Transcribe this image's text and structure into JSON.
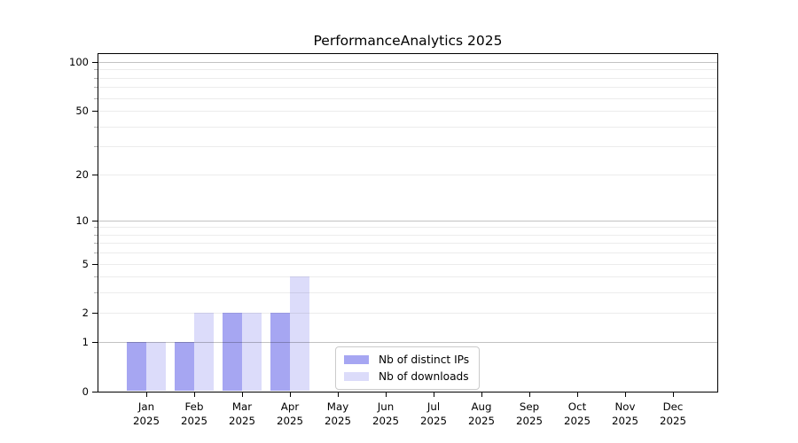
{
  "title": "PerformanceAnalytics 2025",
  "chart_data": {
    "type": "bar",
    "title": "PerformanceAnalytics 2025",
    "categories": [
      "Jan",
      "Feb",
      "Mar",
      "Apr",
      "May",
      "Jun",
      "Jul",
      "Aug",
      "Sep",
      "Oct",
      "Nov",
      "Dec"
    ],
    "x_tick_year": "2025",
    "series": [
      {
        "name": "Nb of distinct IPs",
        "color": "#a6a6f2",
        "values": [
          1,
          1,
          2,
          2,
          0,
          0,
          0,
          0,
          0,
          0,
          0,
          0
        ]
      },
      {
        "name": "Nb of downloads",
        "color": "#dcdcfa",
        "values": [
          1,
          2,
          2,
          4,
          0,
          0,
          0,
          0,
          0,
          0,
          0,
          0
        ]
      }
    ],
    "yscale": "log1p",
    "ylim": [
      0,
      113
    ],
    "y_major_ticks": [
      0,
      1,
      2,
      5,
      10,
      20,
      50,
      100
    ],
    "y_minor_gridlines": [
      3,
      4,
      6,
      7,
      8,
      9,
      30,
      40,
      60,
      70,
      80,
      90
    ],
    "emphasized_gridlines": [
      1,
      10,
      100
    ],
    "grid": "horizontal",
    "legend_position": "lower-center-inside",
    "colors": {
      "grid_minor": "rgba(0,0,0,0.075)",
      "grid_emphasis": "rgba(0,0,0,0.24)",
      "axis": "#000000",
      "legend_border": "#cbcbcb"
    }
  }
}
